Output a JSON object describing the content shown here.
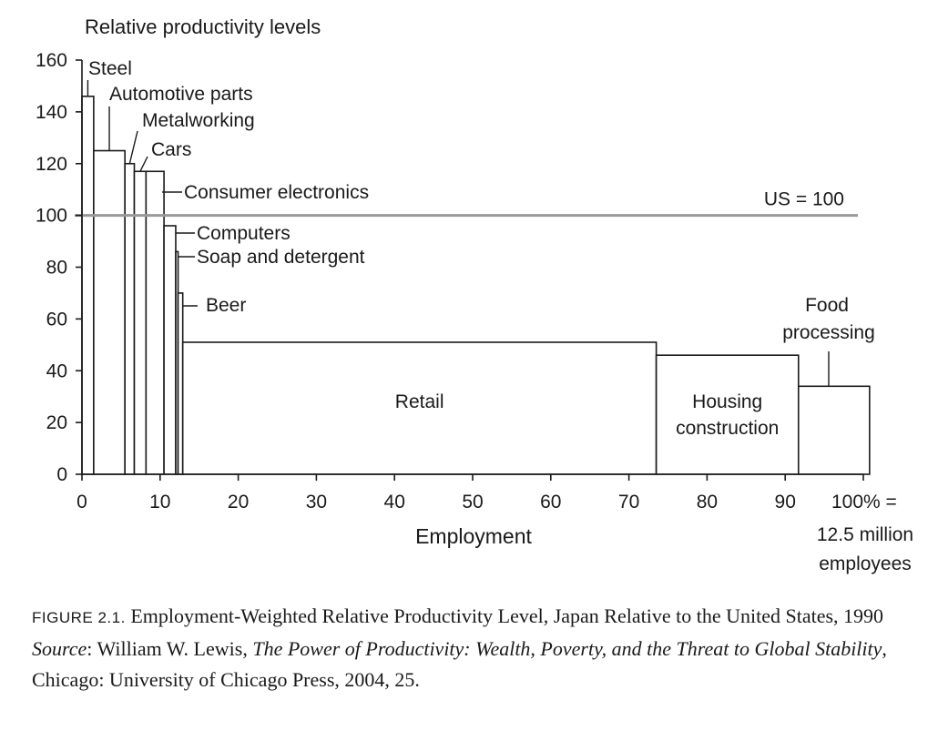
{
  "chart_data": {
    "type": "bar",
    "variant": "variable-width",
    "ylabel": "Relative productivity levels",
    "xlabel": "Employment",
    "xlim": [
      0,
      100
    ],
    "ylim": [
      0,
      160
    ],
    "x_ticks": [
      0,
      10,
      20,
      30,
      40,
      50,
      60,
      70,
      80,
      90,
      100
    ],
    "x_tick_labels": [
      "0",
      "10",
      "20",
      "30",
      "40",
      "50",
      "60",
      "70",
      "80",
      "90",
      "100% ="
    ],
    "x_end_note": [
      "12.5 million",
      "employees"
    ],
    "y_ticks": [
      0,
      20,
      40,
      60,
      80,
      100,
      120,
      140,
      160
    ],
    "grid": false,
    "reference_line": {
      "value": 100,
      "label": "US = 100",
      "color": "#999999"
    },
    "bars": [
      {
        "label": "Steel",
        "x_start": 0,
        "x_end": 1.5,
        "value": 146
      },
      {
        "label": "Automotive parts",
        "x_start": 1.5,
        "x_end": 5.5,
        "value": 125
      },
      {
        "label": "Metalworking",
        "x_start": 5.5,
        "x_end": 6.7,
        "value": 120
      },
      {
        "label": "Cars",
        "x_start": 6.7,
        "x_end": 8.2,
        "value": 117
      },
      {
        "label": "Consumer electronics",
        "x_start": 8.2,
        "x_end": 10.5,
        "value": 117
      },
      {
        "label": "Computers",
        "x_start": 10.5,
        "x_end": 12.0,
        "value": 96
      },
      {
        "label": "Soap and detergent",
        "x_start": 12.0,
        "x_end": 12.3,
        "value": 86
      },
      {
        "label": "Beer",
        "x_start": 12.3,
        "x_end": 12.9,
        "value": 70
      },
      {
        "label": "Retail",
        "x_start": 12.9,
        "x_end": 73.5,
        "value": 51
      },
      {
        "label": "Housing construction",
        "x_start": 73.5,
        "x_end": 91.7,
        "value": 46
      },
      {
        "label": "Food processing",
        "x_start": 91.7,
        "x_end": 100.8,
        "value": 34
      }
    ]
  },
  "caption": {
    "figure_label": "FIGURE 2.1.",
    "title": " Employment-Weighted Relative Productivity Level, Japan Relative to the United States, 1990",
    "source_label": "Source",
    "source_sep": ": William W. Lewis, ",
    "source_book": "The Power of Productivity: Wealth, Poverty, and the Threat to Global Stability",
    "source_rest": ", Chicago: University of Chicago Press, 2004, 25."
  }
}
